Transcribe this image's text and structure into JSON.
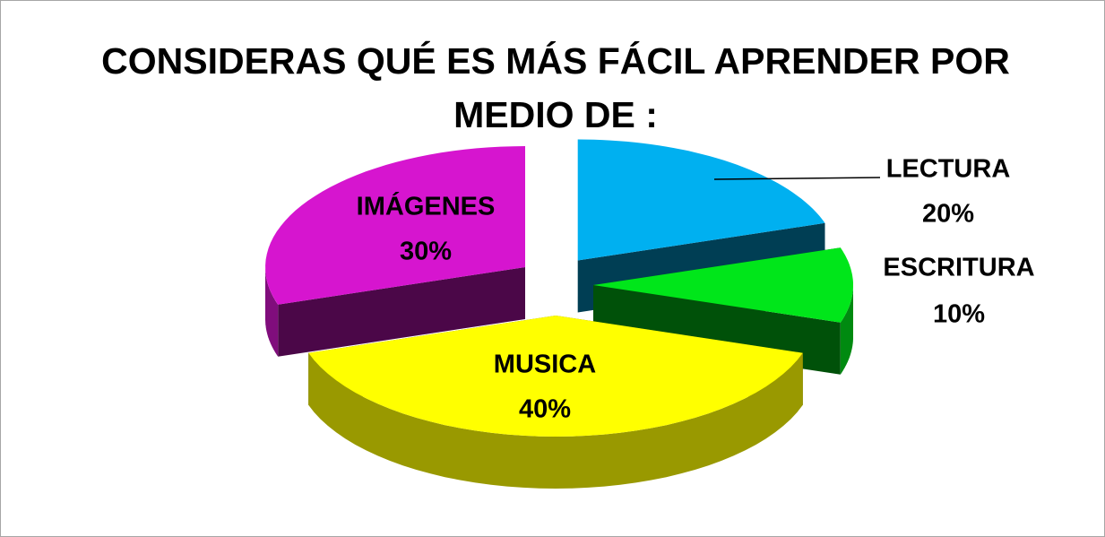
{
  "chart_data": {
    "type": "pie",
    "title": "CONSIDERAS QUÉ ES MÁS FÁCIL APRENDER POR MEDIO DE :",
    "categories": [
      "LECTURA",
      "ESCRITURA",
      "MUSICA",
      "IMÁGENES"
    ],
    "values": [
      20,
      10,
      40,
      30
    ],
    "value_labels": [
      "20%",
      "10%",
      "40%",
      "30%"
    ],
    "colors": [
      "#00b0f0",
      "#00e61a",
      "#ffff00",
      "#d615cf"
    ]
  }
}
